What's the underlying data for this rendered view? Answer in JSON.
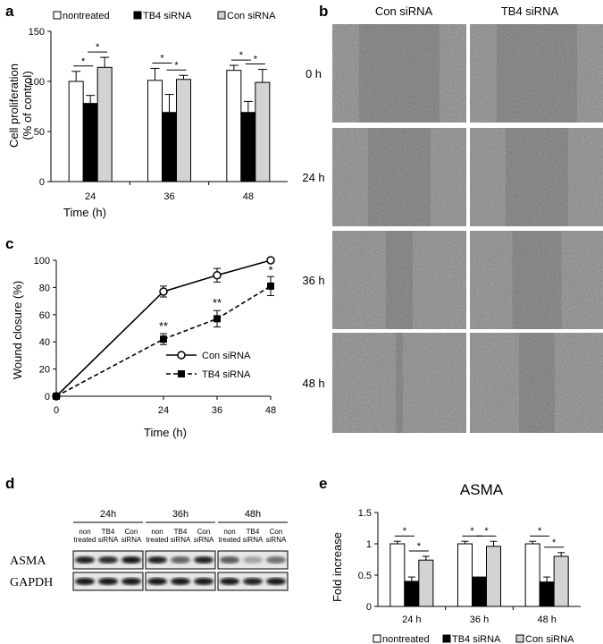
{
  "panels": {
    "a": "a",
    "b": "b",
    "c": "c",
    "d": "d",
    "e": "e"
  },
  "colors": {
    "nontreated": "#ffffff",
    "tb4": "#000000",
    "con": "#d3d3d3",
    "axis": "#000000"
  },
  "chart_data": [
    {
      "id": "a",
      "type": "bar",
      "categories": [
        "24",
        "36",
        "48"
      ],
      "series": [
        {
          "name": "nontreated",
          "values": [
            100,
            101,
            111
          ],
          "errors": [
            10,
            12,
            5
          ]
        },
        {
          "name": "TB4 siRNA",
          "values": [
            78,
            69,
            69
          ],
          "errors": [
            8,
            18,
            11
          ]
        },
        {
          "name": "Con siRNA",
          "values": [
            114,
            102,
            99
          ],
          "errors": [
            10,
            4,
            13
          ]
        }
      ],
      "xlabel": "Time (h)",
      "ylabel": "Cell proliferation (% of control)",
      "ylabel_lines": [
        "Cell proliferation",
        "(% of control)"
      ],
      "ylim": [
        0,
        150
      ],
      "yticks": [
        "0",
        "50",
        "100",
        "150"
      ],
      "significance": "*",
      "legend": "top"
    },
    {
      "id": "c",
      "type": "line",
      "x": [
        0,
        24,
        36,
        48
      ],
      "xticks": [
        "0",
        "24",
        "36",
        "48"
      ],
      "series": [
        {
          "name": "Con siRNA",
          "values": [
            0,
            77,
            89,
            100
          ],
          "errors": [
            0,
            4,
            5,
            1
          ],
          "marker": "circle-open",
          "style": "solid"
        },
        {
          "name": "TB4 siRNA",
          "values": [
            0,
            42,
            57,
            81
          ],
          "errors": [
            0,
            4,
            6,
            7
          ],
          "marker": "square-filled",
          "style": "dashed"
        }
      ],
      "annotations": [
        "**",
        "**",
        "*"
      ],
      "xlabel": "Time (h)",
      "ylabel": "Wound closure (%)",
      "ylim": [
        0,
        100
      ],
      "yticks": [
        "0",
        "20",
        "40",
        "60",
        "80",
        "100"
      ],
      "legend": "bottom-right"
    },
    {
      "id": "e",
      "type": "bar",
      "title": "ASMA",
      "categories": [
        "24 h",
        "36 h",
        "48 h"
      ],
      "series": [
        {
          "name": "nontreated",
          "values": [
            1.0,
            1.0,
            1.0
          ],
          "errors": [
            0.04,
            0.04,
            0.04
          ]
        },
        {
          "name": "TB4 siRNA",
          "values": [
            0.4,
            0.47,
            0.39
          ],
          "errors": [
            0.07,
            0,
            0.08
          ]
        },
        {
          "name": "Con siRNA",
          "values": [
            0.74,
            0.96,
            0.8
          ],
          "errors": [
            0.06,
            0.08,
            0.06
          ]
        }
      ],
      "ylabel": "Fold increase",
      "ylim": [
        0,
        1.5
      ],
      "yticks": [
        "0",
        "0.5",
        "1",
        "1.5"
      ],
      "significance": "*",
      "legend": "bottom"
    }
  ],
  "micrograph": {
    "columns": [
      "Con siRNA",
      "TB4 siRNA"
    ],
    "rows": [
      "0 h",
      "24 h",
      "36 h",
      "48 h"
    ]
  },
  "blot": {
    "times": [
      "24h",
      "36h",
      "48h"
    ],
    "lanes": [
      [
        "non",
        "treated"
      ],
      [
        "TB4",
        "siRNA"
      ],
      [
        "Con",
        "siRNA"
      ]
    ],
    "proteins": [
      "ASMA",
      "GAPDH"
    ],
    "asma_intensity": [
      [
        0.9,
        0.85,
        0.95
      ],
      [
        0.9,
        0.6,
        0.9
      ],
      [
        0.65,
        0.3,
        0.55
      ]
    ],
    "gapdh_intensity": [
      [
        0.95,
        0.95,
        0.95
      ],
      [
        0.95,
        0.95,
        0.95
      ],
      [
        0.95,
        0.9,
        0.95
      ]
    ]
  }
}
